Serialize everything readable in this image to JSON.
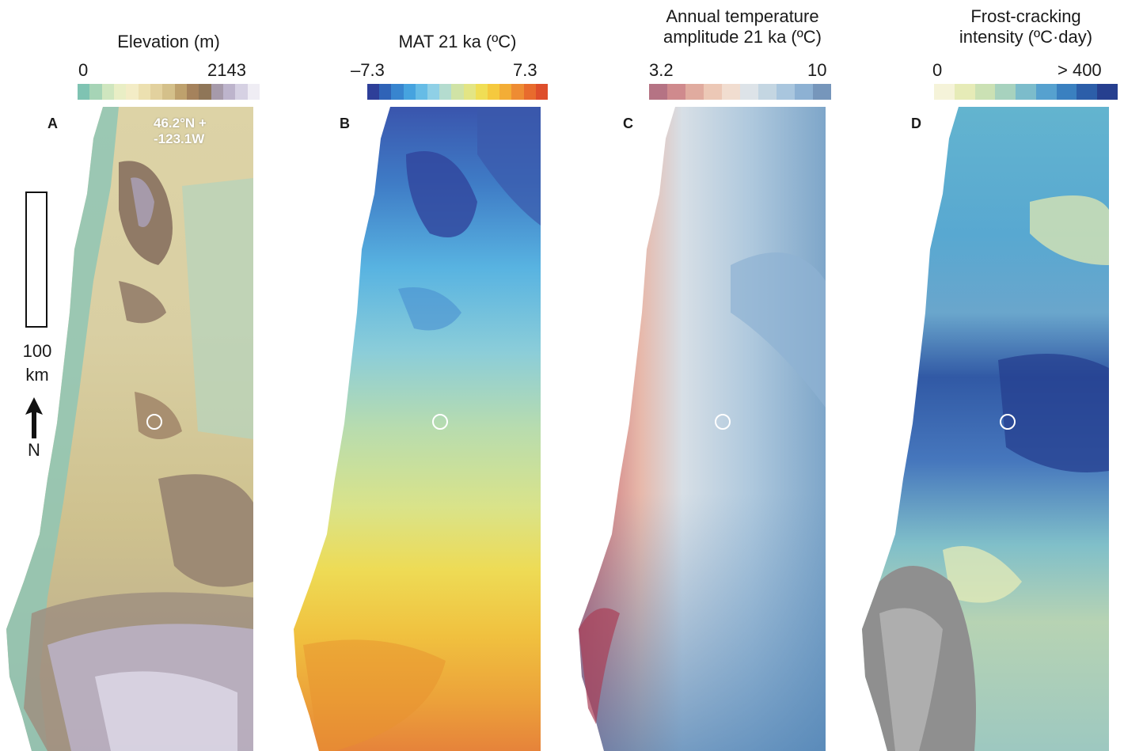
{
  "panels": [
    {
      "letter": "A",
      "title_lines": [
        "Elevation (m)"
      ],
      "legend_min": "0",
      "legend_max": "2143",
      "legend_colors": [
        "#7fc3b2",
        "#a6d4b6",
        "#cfe6bf",
        "#e9eec5",
        "#f3ecc6",
        "#ece0b0",
        "#e2d19e",
        "#d4c08a",
        "#bea16d",
        "#a5825c",
        "#8f7658",
        "#a69aaa",
        "#bdb4cc",
        "#d6d1e3",
        "#efedf4"
      ],
      "coord_lines": [
        "46.2°N +",
        "-123.1W"
      ]
    },
    {
      "letter": "B",
      "title_lines": [
        "MAT 21 ka (ºC)"
      ],
      "legend_min": "–7.3",
      "legend_max": "7.3",
      "legend_colors": [
        "#2e3f99",
        "#2f63b7",
        "#3885cf",
        "#46a3df",
        "#66bce6",
        "#8fd0e6",
        "#b4dccf",
        "#d0e3a6",
        "#e3e584",
        "#f0de55",
        "#f5c93e",
        "#f3ad36",
        "#ee8c33",
        "#e86b2d",
        "#de4e2b"
      ]
    },
    {
      "letter": "C",
      "title_lines": [
        "Annual  temperature",
        "amplitude 21 ka (ºC)"
      ],
      "legend_min": "3.2",
      "legend_max": "10",
      "legend_colors": [
        "#b57384",
        "#cf8a8d",
        "#e0ab9f",
        "#ecc8b6",
        "#f1ddd0",
        "#dde3e8",
        "#c4d6e2",
        "#a9c6de",
        "#8db1d3",
        "#7696bb"
      ]
    },
    {
      "letter": "D",
      "title_lines": [
        "Frost-cracking",
        "intensity (ºC·day)"
      ],
      "legend_min": "0",
      "legend_max": "> 400",
      "legend_colors": [
        "#f5f3d9",
        "#e6ebb7",
        "#cbe1b4",
        "#a7d2be",
        "#7cbccb",
        "#56a1cf",
        "#3a80c0",
        "#2c5ea9",
        "#263f8f"
      ]
    }
  ],
  "scale_bar": {
    "line1": "100",
    "line2": "km"
  },
  "north_label": "N"
}
